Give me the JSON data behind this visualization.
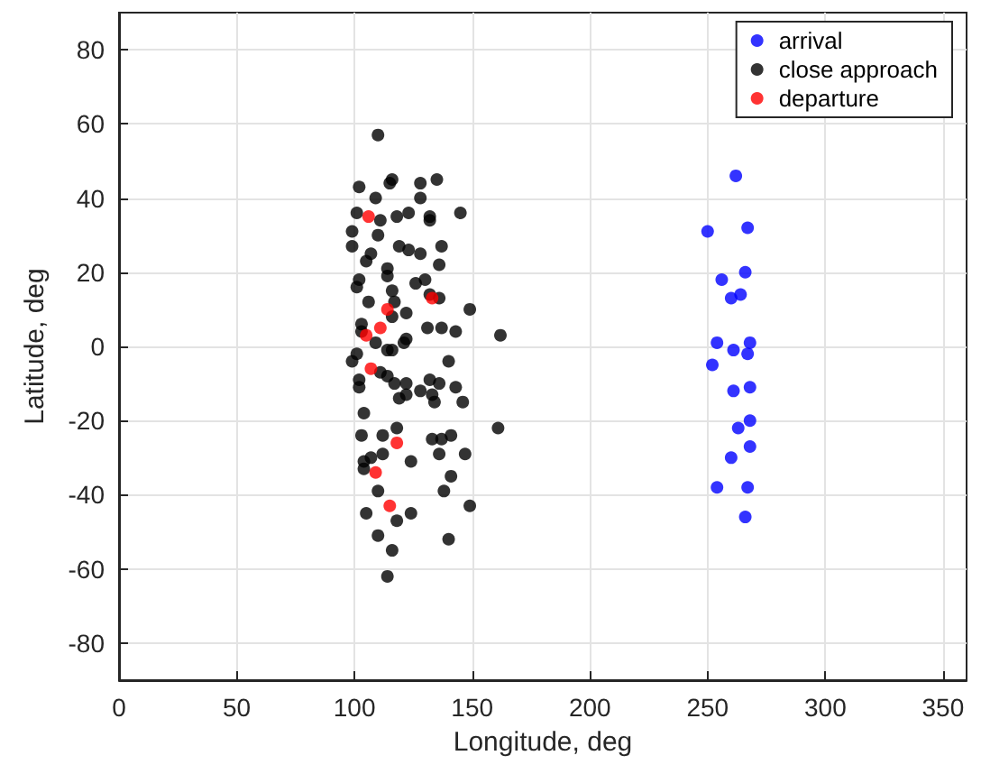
{
  "chart_data": {
    "type": "scatter",
    "xlabel": "Longitude, deg",
    "ylabel": "Latitude, deg",
    "xlim": [
      0,
      360
    ],
    "xticks": [
      0,
      50,
      100,
      150,
      200,
      250,
      300,
      350
    ],
    "ylim": [
      -90,
      90
    ],
    "yticks": [
      -80,
      -60,
      -40,
      -20,
      0,
      20,
      40,
      60,
      80
    ],
    "grid": true,
    "legend": "top right",
    "marker": "circle",
    "series": [
      {
        "name": "arrival",
        "color": "#0000ff",
        "x": [
          262,
          250,
          267,
          256,
          266,
          260,
          264,
          254,
          261,
          268,
          252,
          267,
          261,
          268,
          268,
          263,
          260,
          268,
          254,
          267,
          266
        ],
        "values": [
          46,
          31,
          32,
          18,
          20,
          13,
          14,
          1,
          -1,
          1,
          -5,
          -2,
          -12,
          -11,
          -20,
          -22,
          -30,
          -27,
          -38,
          -38,
          -46
        ]
      },
      {
        "name": "close approach",
        "color": "#000000",
        "x": [
          110,
          102,
          115,
          116,
          128,
          135,
          109,
          128,
          101,
          111,
          118,
          123,
          132,
          132,
          145,
          99,
          110,
          99,
          107,
          105,
          119,
          123,
          128,
          137,
          136,
          114,
          114,
          102,
          101,
          116,
          126,
          130,
          132,
          136,
          106,
          117,
          122,
          116,
          149,
          103,
          131,
          137,
          143,
          162,
          103,
          122,
          114,
          116,
          121,
          109,
          101,
          99,
          140,
          102,
          102,
          111,
          114,
          117,
          122,
          119,
          122,
          128,
          132,
          136,
          133,
          134,
          143,
          146,
          104,
          103,
          112,
          118,
          133,
          137,
          141,
          161,
          112,
          107,
          104,
          104,
          124,
          136,
          147,
          141,
          138,
          110,
          105,
          118,
          124,
          149,
          110,
          140,
          116,
          114
        ],
        "values": [
          57,
          43,
          44,
          45,
          44,
          45,
          40,
          40,
          36,
          34,
          35,
          36,
          35,
          34,
          36,
          31,
          30,
          27,
          25,
          23,
          27,
          26,
          25,
          27,
          22,
          21,
          19,
          18,
          16,
          15,
          17,
          18,
          14,
          13,
          12,
          12,
          9,
          8,
          10,
          6,
          5,
          5,
          4,
          3,
          4,
          2,
          -1,
          -1,
          1,
          1,
          -2,
          -4,
          -4,
          -9,
          -11,
          -7,
          -8,
          -10,
          -10,
          -14,
          -13,
          -12,
          -9,
          -10,
          -13,
          -15,
          -11,
          -15,
          -18,
          -24,
          -24,
          -22,
          -25,
          -25,
          -24,
          -22,
          -29,
          -30,
          -31,
          -33,
          -31,
          -29,
          -29,
          -35,
          -39,
          -39,
          -45,
          -47,
          -45,
          -43,
          -51,
          -52,
          -55,
          -62
        ]
      },
      {
        "name": "departure",
        "color": "#ff0000",
        "x": [
          106,
          114,
          133,
          111,
          105,
          107,
          118,
          109,
          115
        ],
        "values": [
          35,
          10,
          13,
          5,
          3,
          -6,
          -26,
          -34,
          -43
        ]
      }
    ]
  }
}
